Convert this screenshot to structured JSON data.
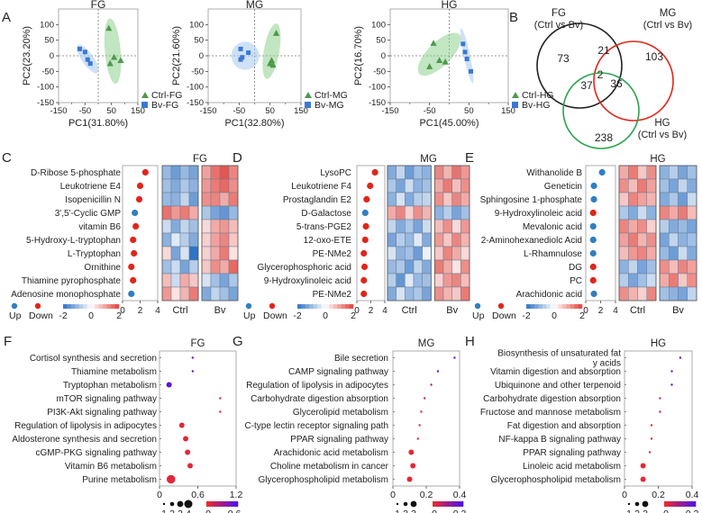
{
  "figure": {
    "panel_letters": [
      "A",
      "B",
      "C",
      "D",
      "E",
      "F",
      "G",
      "H"
    ]
  },
  "chart_data": [
    {
      "panel": "A",
      "type": "scatter",
      "title": "FG",
      "xlabel": "PC1(31.80%)",
      "ylabel": "PC2(23.20%)",
      "xlim": [
        -150,
        150
      ],
      "ylim": [
        -150,
        150
      ],
      "xticks": [
        "-150",
        "-50",
        "50",
        "150"
      ],
      "xticks_minor": [
        "-100",
        "0",
        "100"
      ],
      "yticks": [
        "100",
        "50",
        "0",
        "-50",
        "-100",
        "-150"
      ],
      "legend": [
        {
          "label": "Ctrl-FG",
          "shape": "triangle",
          "color": "#4e9a4e"
        },
        {
          "label": "Bv-FG",
          "shape": "square",
          "color": "#3a78d4"
        }
      ],
      "series": [
        {
          "name": "Ctrl-FG",
          "x": [
            40,
            60,
            85,
            45
          ],
          "y": [
            88,
            -5,
            -15,
            -25
          ]
        },
        {
          "name": "Bv-FG",
          "x": [
            -70,
            -50,
            -40,
            -30
          ],
          "y": [
            22,
            12,
            -12,
            -25
          ]
        }
      ],
      "ellipses": [
        {
          "series": "Ctrl-FG",
          "cx": 55,
          "cy": 15,
          "rx": 30,
          "ry": 105,
          "angle": -5,
          "color": "#8fd08f"
        },
        {
          "series": "Bv-FG",
          "cx": -40,
          "cy": -10,
          "rx": 22,
          "ry": 55,
          "angle": -35,
          "color": "#a8c8ef"
        }
      ]
    },
    {
      "panel": "A",
      "type": "scatter",
      "title": "MG",
      "xlabel": "PC1(32.80%)",
      "ylabel": "PC2(21.60%)",
      "xlim": [
        -150,
        150
      ],
      "ylim": [
        -150,
        150
      ],
      "xticks": [
        "-150",
        "-50",
        "50",
        "150"
      ],
      "xticks_minor": [
        "-100",
        "0",
        "100"
      ],
      "yticks": [
        "100",
        "50",
        "0",
        "-50",
        "-100",
        "-150"
      ],
      "legend": [
        {
          "label": "Ctrl-MG",
          "shape": "triangle",
          "color": "#4e9a4e"
        },
        {
          "label": "Bv-MG",
          "shape": "square",
          "color": "#3a78d4"
        }
      ],
      "series": [
        {
          "name": "Ctrl-MG",
          "x": [
            70,
            55,
            50,
            60
          ],
          "y": [
            72,
            -15,
            -25,
            -30
          ]
        },
        {
          "name": "Bv-MG",
          "x": [
            -45,
            -40,
            -45,
            -20
          ],
          "y": [
            22,
            -5,
            -12,
            10
          ]
        }
      ],
      "ellipses": [
        {
          "series": "Ctrl-MG",
          "cx": 55,
          "cy": 15,
          "rx": 25,
          "ry": 90,
          "angle": 10,
          "color": "#8fd08f"
        },
        {
          "series": "Bv-MG",
          "cx": -30,
          "cy": 0,
          "rx": 45,
          "ry": 45,
          "angle": 0,
          "color": "#a8c8ef"
        }
      ]
    },
    {
      "panel": "A",
      "type": "scatter",
      "title": "HG",
      "xlabel": "PC1(45.00%)",
      "ylabel": "PC2(16.70%)",
      "xlim": [
        -150,
        150
      ],
      "ylim": [
        -150,
        150
      ],
      "xticks": [
        "-150",
        "-50",
        "50",
        "150"
      ],
      "xticks_minor": [
        "-100",
        "0",
        "100"
      ],
      "yticks": [
        "100",
        "50",
        "0",
        "-50",
        "-100",
        "-150"
      ],
      "legend": [
        {
          "label": "Ctrl-HG",
          "shape": "triangle",
          "color": "#4e9a4e"
        },
        {
          "label": "Bv-HG",
          "shape": "square",
          "color": "#3a78d4"
        }
      ],
      "series": [
        {
          "name": "Ctrl-HG",
          "x": [
            -40,
            -25,
            -10,
            -50
          ],
          "y": [
            40,
            -15,
            -20,
            -35
          ]
        },
        {
          "name": "Bv-HG",
          "x": [
            35,
            40,
            45,
            55
          ],
          "y": [
            38,
            12,
            -10,
            -50
          ]
        }
      ],
      "ellipses": [
        {
          "series": "Ctrl-HG",
          "cx": -25,
          "cy": 5,
          "rx": 30,
          "ry": 90,
          "angle": 45,
          "color": "#8fd08f"
        },
        {
          "series": "Bv-HG",
          "cx": 45,
          "cy": 0,
          "rx": 8,
          "ry": 90,
          "angle": -12,
          "color": "#a8c8ef"
        }
      ]
    },
    {
      "panel": "B",
      "type": "venn",
      "sets": [
        {
          "name": "FG",
          "sub": "(Ctrl vs Bv)",
          "color": "#222222"
        },
        {
          "name": "MG",
          "sub": "(Ctrl vs Bv)",
          "color": "#e0261b"
        },
        {
          "name": "HG",
          "sub": "(Ctrl vs Bv)",
          "color": "#2ca24f"
        }
      ],
      "regions": {
        "FG_only": "73",
        "MG_only": "103",
        "HG_only": "238",
        "FG_MG": "21",
        "FG_HG": "37",
        "MG_HG": "36",
        "all": "2"
      }
    },
    {
      "panel": "C",
      "type": "heatmap",
      "title": "FG",
      "metabolites": [
        "D-Ribose 5-phosphate",
        "Leukotriene E4",
        "Isopenicillin N",
        "3',5'-Cyclic GMP",
        "vitamin B6",
        "5-Hydroxy-L-tryptophan",
        "L-Tryptophan",
        "Ornithine",
        "Thiamine pyrophosphate",
        "Adenosine monophosphate"
      ],
      "dots": [
        {
          "v": 2.6,
          "dir": "down"
        },
        {
          "v": 2.0,
          "dir": "down"
        },
        {
          "v": 1.9,
          "dir": "down"
        },
        {
          "v": 1.4,
          "dir": "up"
        },
        {
          "v": 1.5,
          "dir": "down"
        },
        {
          "v": 1.2,
          "dir": "down"
        },
        {
          "v": 1.3,
          "dir": "down"
        },
        {
          "v": 1.0,
          "dir": "down"
        },
        {
          "v": 1.2,
          "dir": "down"
        },
        {
          "v": 1.0,
          "dir": "up"
        }
      ],
      "dot_axis": {
        "min": 0,
        "max": 4,
        "ticks": [
          "0",
          "2",
          "4"
        ]
      },
      "groups": [
        "Ctrl",
        "Bv"
      ],
      "matrix": [
        [
          -1,
          -1.4,
          -1,
          -1.3,
          1,
          1.5,
          1.8,
          1.3
        ],
        [
          -0.9,
          -1.2,
          -0.8,
          -1.1,
          1.1,
          1.4,
          1.6,
          1.2
        ],
        [
          -1,
          -1.1,
          -0.6,
          -1.4,
          1.2,
          1.3,
          0.9,
          1.4
        ],
        [
          1.5,
          1.1,
          1.4,
          0.9,
          -0.8,
          -1.3,
          -1.5,
          -1
        ],
        [
          -0.5,
          -1.2,
          -0.6,
          -0.9,
          0.4,
          0.9,
          1.1,
          0.7
        ],
        [
          -1.1,
          -0.3,
          -0.7,
          -1.2,
          0.5,
          1,
          1.3,
          0.6
        ],
        [
          0.4,
          -1.3,
          -0.4,
          -2,
          0.5,
          0.9,
          1.4,
          0.3
        ],
        [
          -0.9,
          -0.5,
          -1.3,
          -0.7,
          0.6,
          1.2,
          0.9,
          1.6
        ],
        [
          0.7,
          -0.5,
          0.9,
          0.6,
          -0.4,
          -0.9,
          -1.3,
          -0.8
        ],
        [
          1.1,
          0.3,
          0.8,
          1.4,
          -1.2,
          -0.6,
          -0.9,
          -1.3
        ]
      ],
      "legend_scale": {
        "ticks": [
          "-2",
          "0",
          "2"
        ]
      },
      "dot_legend": [
        {
          "label": "Up",
          "color": "#2f7fc1"
        },
        {
          "label": "Down",
          "color": "#e0261b"
        }
      ]
    },
    {
      "panel": "D",
      "type": "heatmap",
      "title": "MG",
      "metabolites": [
        "LysoPC",
        "Leukotriene F4",
        "Prostaglandin E2",
        "D-Galactose",
        "5-trans-PGE2",
        "12-oxo-ETE",
        "PE-NMe2",
        "Glycerophosphoric acid",
        "9-Hydroxylinoleic acid",
        "PE-NMe2"
      ],
      "dots": [
        {
          "v": 2.6,
          "dir": "down"
        },
        {
          "v": 1.9,
          "dir": "down"
        },
        {
          "v": 1.4,
          "dir": "down"
        },
        {
          "v": 1.2,
          "dir": "up"
        },
        {
          "v": 1.3,
          "dir": "down"
        },
        {
          "v": 1.2,
          "dir": "down"
        },
        {
          "v": 1.0,
          "dir": "down"
        },
        {
          "v": 1.1,
          "dir": "down"
        },
        {
          "v": 1.0,
          "dir": "down"
        },
        {
          "v": 1.0,
          "dir": "down"
        }
      ],
      "dot_axis": {
        "min": 0,
        "max": 4,
        "ticks": [
          "0",
          "2",
          "4"
        ]
      },
      "groups": [
        "Ctrl",
        "Bv"
      ],
      "matrix": [
        [
          -1.2,
          -0.6,
          -1.4,
          -0.9,
          -1.1,
          1.3,
          0.8,
          1.5,
          1.1
        ],
        [
          -0.8,
          -1.3,
          -0.5,
          -1.1,
          -0.9,
          0.9,
          1.4,
          0.7,
          1.2
        ],
        [
          -1.1,
          -0.4,
          -1.2,
          -0.7,
          -0.6,
          1.2,
          0.6,
          1.3,
          0.9
        ],
        [
          0.9,
          1.3,
          0.5,
          1.2,
          0.8,
          -1.1,
          -0.7,
          -1.3,
          -0.9
        ],
        [
          -0.6,
          -1.2,
          -0.8,
          -1.3,
          -0.5,
          0.7,
          1.2,
          0.4,
          1.1
        ],
        [
          -1.3,
          -0.7,
          -1,
          -0.3,
          -1.2,
          1.1,
          0.6,
          1.3,
          0.8
        ],
        [
          -0.4,
          -1.1,
          -0.9,
          -1.4,
          -0.2,
          0.6,
          1.3,
          0.9,
          0.4
        ],
        [
          -1,
          -0.8,
          -1.4,
          -0.6,
          -1.2,
          1.4,
          0.9,
          0.3,
          1.2
        ],
        [
          -0.7,
          -1.5,
          -0.3,
          -1,
          -0.9,
          0.5,
          1.1,
          1.3,
          0.7
        ],
        [
          -1.2,
          -0.4,
          -1,
          -0.8,
          -1.3,
          1.2,
          0.8,
          0.6,
          1.4
        ]
      ],
      "legend_scale": {
        "ticks": [
          "-2",
          "0",
          "2"
        ]
      },
      "dot_legend": [
        {
          "label": "Up",
          "color": "#2f7fc1"
        },
        {
          "label": "Down",
          "color": "#e0261b"
        }
      ]
    },
    {
      "panel": "E",
      "type": "heatmap",
      "title": "HG",
      "metabolites": [
        "Withanolide B",
        "Geneticin",
        "Sphingosine 1-phosphate",
        "9-Hydroxylinoleic acid",
        "Mevalonic acid",
        "2-Aminohexanediolc Acid",
        "L-Rhamnulose",
        "DG",
        "PC",
        "Arachidonic acid"
      ],
      "dots": [
        {
          "v": 2.2,
          "dir": "up"
        },
        {
          "v": 1.1,
          "dir": "up"
        },
        {
          "v": 1.1,
          "dir": "up"
        },
        {
          "v": 1.0,
          "dir": "down"
        },
        {
          "v": 1.0,
          "dir": "up"
        },
        {
          "v": 1.0,
          "dir": "up"
        },
        {
          "v": 1.0,
          "dir": "up"
        },
        {
          "v": 1.0,
          "dir": "down"
        },
        {
          "v": 1.0,
          "dir": "down"
        },
        {
          "v": 1.1,
          "dir": "up"
        }
      ],
      "dot_axis": {
        "min": 0,
        "max": 4,
        "ticks": [
          "0",
          "2",
          "4"
        ]
      },
      "groups": [
        "Ctrl",
        "Bv"
      ],
      "matrix": [
        [
          0.9,
          1.4,
          0.6,
          1.2,
          -1.1,
          -0.7,
          -1.3,
          -0.9
        ],
        [
          1.2,
          0.7,
          1.4,
          1,
          -0.9,
          -1.3,
          -0.6,
          -1.2
        ],
        [
          0.6,
          1.3,
          1,
          0.8,
          -1.2,
          -0.8,
          -1.4,
          -0.5
        ],
        [
          -0.8,
          -1.2,
          -0.5,
          -1.1,
          1.3,
          0.9,
          1.4,
          0.7
        ],
        [
          1.3,
          0.9,
          1.2,
          0.5,
          -0.7,
          -1.2,
          -1,
          -1.3
        ],
        [
          1,
          1.4,
          0.8,
          1.2,
          -1.3,
          -0.6,
          -1.1,
          -0.9
        ],
        [
          0.7,
          1.1,
          1.3,
          0.9,
          -1,
          -1.4,
          -0.5,
          -1.2
        ],
        [
          -1.1,
          -0.6,
          -1.3,
          -0.9,
          1.2,
          0.7,
          1.3,
          1
        ],
        [
          -0.7,
          -1.3,
          -0.9,
          -0.5,
          0.9,
          1.4,
          0.6,
          1.2
        ],
        [
          1.2,
          0.8,
          0.5,
          1.3,
          -0.9,
          -1.1,
          -1.3,
          -0.6
        ]
      ],
      "legend_scale": {
        "ticks": [
          "-2",
          "0",
          "2"
        ]
      },
      "dot_legend": [
        {
          "label": "Up",
          "color": "#2f7fc1"
        },
        {
          "label": "Down",
          "color": "#e0261b"
        }
      ]
    },
    {
      "panel": "F",
      "type": "scatter",
      "title": "FG",
      "categories": [
        "Cortisol synthesis and secretion",
        "Thiamine metabolism",
        "Tryptophan metabolism",
        "mTOR signaling pathway",
        "PI3K-Akt signaling pathway",
        "Regulation of lipolysis in adipocytes",
        "Aldosterone synthesis and secretion",
        "cGMP-PKG signaling pathway",
        "Vitamin B6 metabolism",
        "Purine metabolism"
      ],
      "x": [
        0.52,
        0.52,
        0.15,
        0.95,
        0.95,
        0.35,
        0.41,
        0.44,
        0.48,
        0.18
      ],
      "size": [
        1,
        1,
        2,
        1,
        1,
        2,
        2,
        2,
        2,
        3
      ],
      "color": [
        0.5,
        0.5,
        0.55,
        0.05,
        0.05,
        0.05,
        0.05,
        0.05,
        0.05,
        0.05
      ],
      "xlim": [
        0,
        1.2
      ],
      "xticks": [
        "0",
        "0.6",
        "1.2"
      ],
      "size_legend": [
        "1",
        "2",
        "3",
        "4"
      ],
      "color_legend": {
        "min": "0",
        "max": "0.6"
      },
      "colors": {
        "low": "#ef2a2a",
        "high": "#4b12e8"
      }
    },
    {
      "panel": "G",
      "type": "scatter",
      "title": "MG",
      "categories": [
        "Bile secretion",
        "CAMP signaling pathway",
        "Regulation of lipolysis in adipocytes",
        "Carbohydrate digestion absorption",
        "Glycerolipid metabolism",
        "C-type lectin receptor signaling path",
        "PPAR signaling pathway",
        "Arachidonic acid metabolism",
        "Choline metabolism in cancer",
        "Glycerophospholipid metabolism"
      ],
      "x": [
        0.37,
        0.27,
        0.23,
        0.19,
        0.17,
        0.16,
        0.15,
        0.11,
        0.12,
        0.1
      ],
      "size": [
        1,
        1,
        1,
        1,
        1,
        1,
        1,
        2,
        2,
        2
      ],
      "color": [
        0.24,
        0.26,
        0.14,
        0.06,
        0.04,
        0.04,
        0.03,
        0.02,
        0.02,
        0.02
      ],
      "xlim": [
        0,
        0.4
      ],
      "xticks": [
        "0",
        "0.2",
        "0.4"
      ],
      "size_legend": [
        "1",
        "2",
        "3"
      ],
      "color_legend": {
        "min": "0",
        "max": "0.3"
      },
      "colors": {
        "low": "#ef2a2a",
        "high": "#4b12e8"
      }
    },
    {
      "panel": "H",
      "type": "scatter",
      "title": "HG",
      "categories": [
        "Biosynthesis of unsaturated fatty acids",
        "Vitamin digestion and absorption",
        "Ubiquinone and other terpenoid",
        "Carbohydrate digestion absorption",
        "Fructose and mannose metabolism",
        "Fat digestion and absorption",
        "NF-kappa B signaling pathway",
        "PPAR signaling pathway",
        "Linoleic acid metabolism",
        "Glycerophospholipid metabolism"
      ],
      "x": [
        0.33,
        0.28,
        0.28,
        0.21,
        0.21,
        0.16,
        0.16,
        0.15,
        0.11,
        0.11
      ],
      "size": [
        1,
        1,
        1,
        1,
        1,
        1,
        1,
        1,
        2,
        2
      ],
      "color": [
        0.18,
        0.16,
        0.17,
        0.03,
        0.03,
        0.02,
        0.02,
        0.02,
        0.01,
        0.01
      ],
      "xlim": [
        0,
        0.4
      ],
      "xticks": [
        "0",
        "0.2",
        "0.4"
      ],
      "size_legend": [
        "1",
        "2",
        "3"
      ],
      "color_legend": {
        "min": "0",
        "max": "0.2"
      },
      "colors": {
        "low": "#ef2a2a",
        "high": "#4b12e8"
      }
    }
  ]
}
